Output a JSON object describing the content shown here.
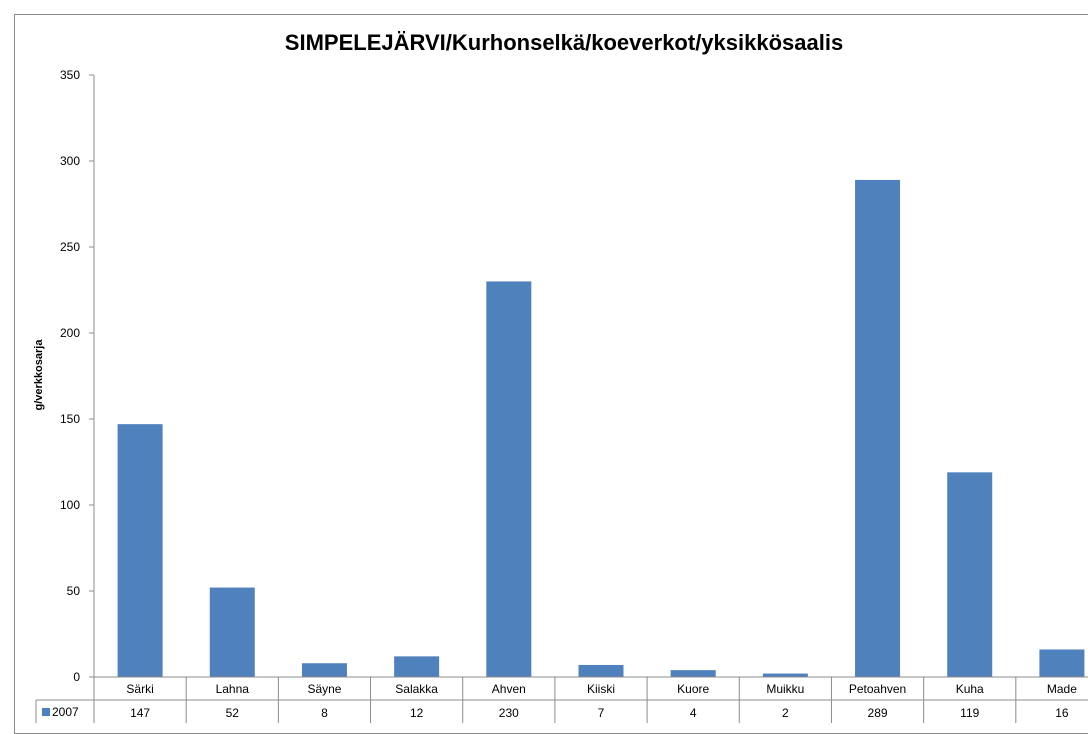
{
  "chart_data": {
    "type": "bar",
    "title": "SIMPELEJÄRVI/Kurhonselkä/koeverkot/yksikkösaalis",
    "ylabel": "g/verkkosarja",
    "xlabel": "",
    "ylim": [
      0,
      350
    ],
    "yticks": [
      "0",
      "50",
      "100",
      "150",
      "200",
      "250",
      "300",
      "350"
    ],
    "ytick_values": [
      0,
      50,
      100,
      150,
      200,
      250,
      300,
      350
    ],
    "grid": false,
    "categories": [
      "Särki",
      "Lahna",
      "Säyne",
      "Salakka",
      "Ahven",
      "Kiiski",
      "Kuore",
      "Muikku",
      "Petoahven",
      "Kuha",
      "Made"
    ],
    "series": [
      {
        "name": "2007",
        "values": [
          147,
          52,
          8,
          12,
          230,
          7,
          4,
          2,
          289,
          119,
          16
        ],
        "labels": [
          "147",
          "52",
          "8",
          "12",
          "230",
          "7",
          "4",
          "2",
          "289",
          "119",
          "16"
        ],
        "color": "#4f81bd"
      }
    ],
    "legend_position": "data-table",
    "axis_color": "#8c8c8c"
  }
}
